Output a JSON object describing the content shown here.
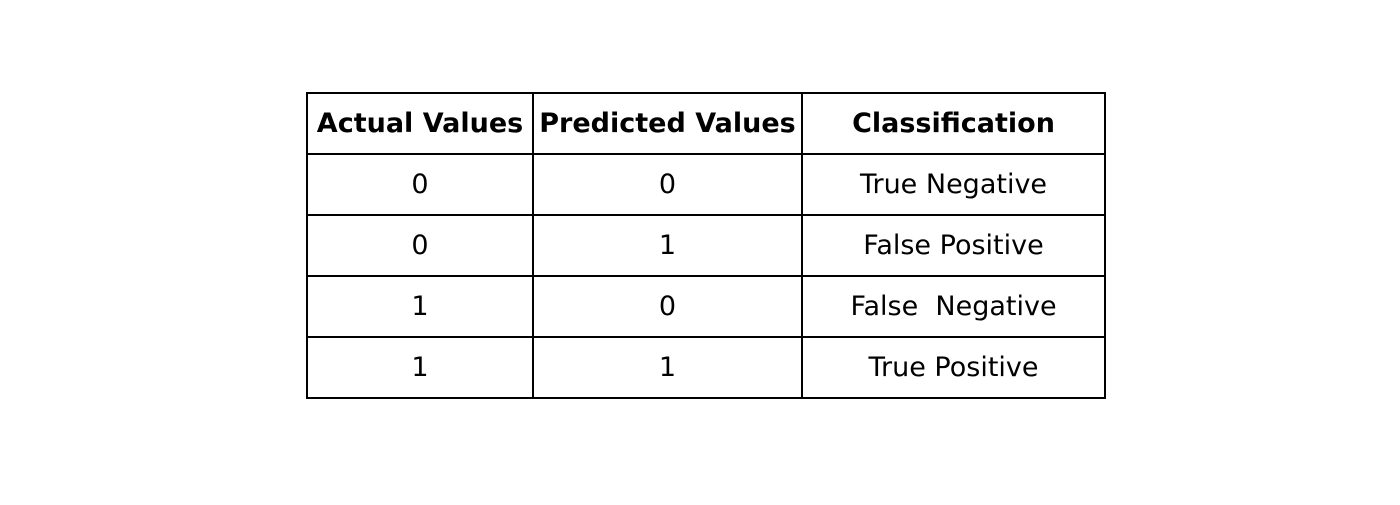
{
  "table": {
    "headers": [
      "Actual Values",
      "Predicted Values",
      "Classification"
    ],
    "rows": [
      [
        "0",
        "0",
        "True Negative"
      ],
      [
        "0",
        "1",
        "False Positive"
      ],
      [
        "1",
        "0",
        "False  Negative"
      ],
      [
        "1",
        "1",
        "True Positive"
      ]
    ]
  }
}
